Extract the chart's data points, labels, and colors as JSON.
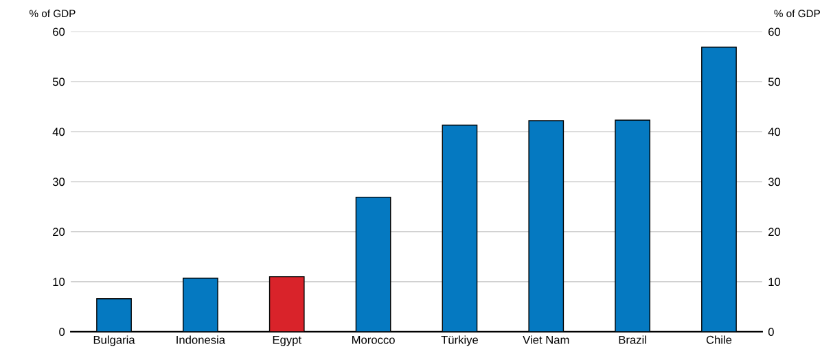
{
  "chart_data": {
    "type": "bar",
    "categories": [
      "Bulgaria",
      "Indonesia",
      "Egypt",
      "Morocco",
      "Türkiye",
      "Viet Nam",
      "Brazil",
      "Chile"
    ],
    "values": [
      6.6,
      10.7,
      11.0,
      26.9,
      41.3,
      42.2,
      42.3,
      56.9
    ],
    "colors": [
      "#0579c1",
      "#0579c1",
      "#d9232a",
      "#0579c1",
      "#0579c1",
      "#0579c1",
      "#0579c1",
      "#0579c1"
    ],
    "ylabel": "% of GDP",
    "y2label": "% of GDP",
    "ylim": [
      0,
      60
    ],
    "yticks": [
      0,
      10,
      20,
      30,
      40,
      50,
      60
    ],
    "y2lim": [
      0,
      60
    ],
    "y2ticks": [
      0,
      10,
      20,
      30,
      40,
      50,
      60
    ],
    "grid": "y",
    "legend": false
  }
}
